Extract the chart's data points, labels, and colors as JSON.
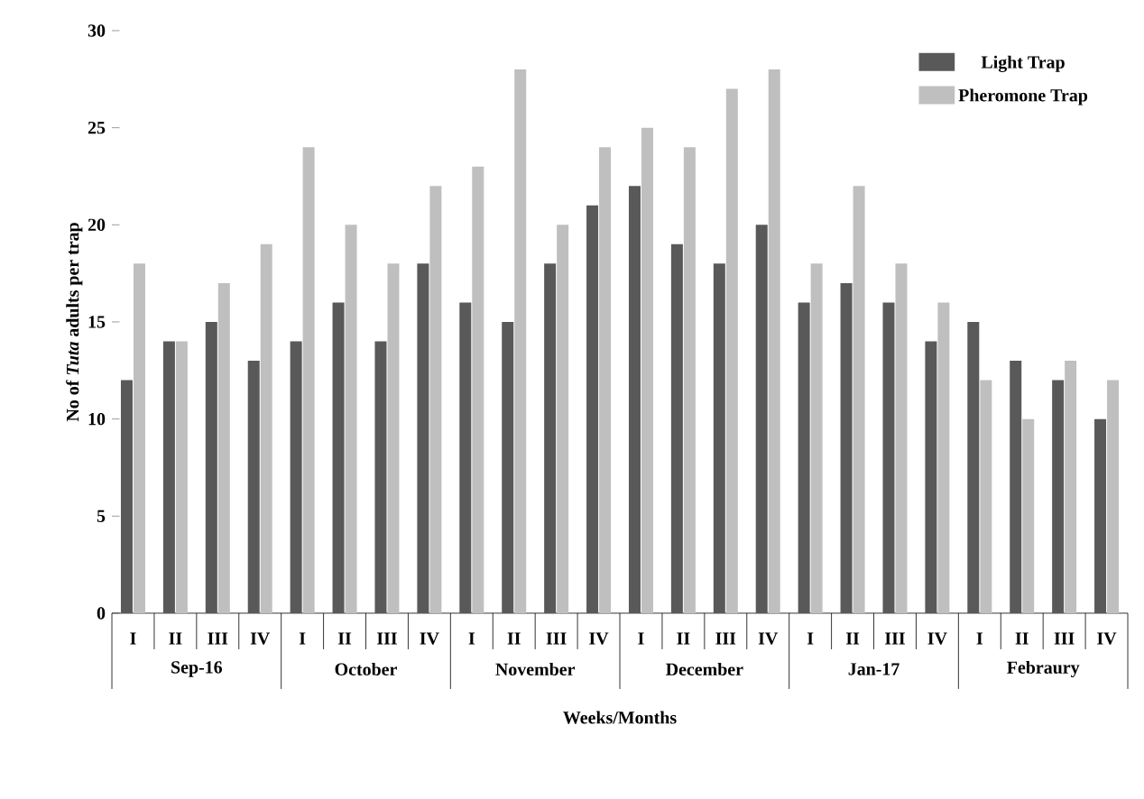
{
  "chart_data": {
    "type": "bar",
    "xlabel": "Weeks/Months",
    "ylabel": "No of *Tuta* adults per trap",
    "categories": [
      "I",
      "II",
      "III",
      "IV",
      "I",
      "II",
      "III",
      "IV",
      "I",
      "II",
      "III",
      "IV",
      "I",
      "II",
      "III",
      "IV",
      "I",
      "II",
      "III",
      "IV",
      "I",
      "II",
      "III",
      "IV"
    ],
    "series": [
      {
        "name": "Light Trap",
        "color": "#595959",
        "values": [
          12,
          14,
          15,
          13,
          14,
          16,
          14,
          18,
          16,
          15,
          18,
          21,
          22,
          19,
          18,
          20,
          16,
          17,
          16,
          14,
          15,
          13,
          12,
          10
        ]
      },
      {
        "name": "Pheromone Trap",
        "color": "#bfbfbf",
        "values": [
          18,
          14,
          17,
          19,
          24,
          20,
          18,
          22,
          23,
          28,
          20,
          24,
          25,
          24,
          27,
          28,
          18,
          22,
          18,
          16,
          12,
          10,
          13,
          12
        ]
      }
    ],
    "annotations": [
      "Sep-16",
      "October",
      "November",
      "December",
      "Jan-17",
      "Febraury"
    ],
    "ylim": [
      0,
      30
    ],
    "yticks": [
      0,
      5,
      10,
      15,
      20,
      25,
      30
    ],
    "legend": "top right",
    "grid": false
  }
}
